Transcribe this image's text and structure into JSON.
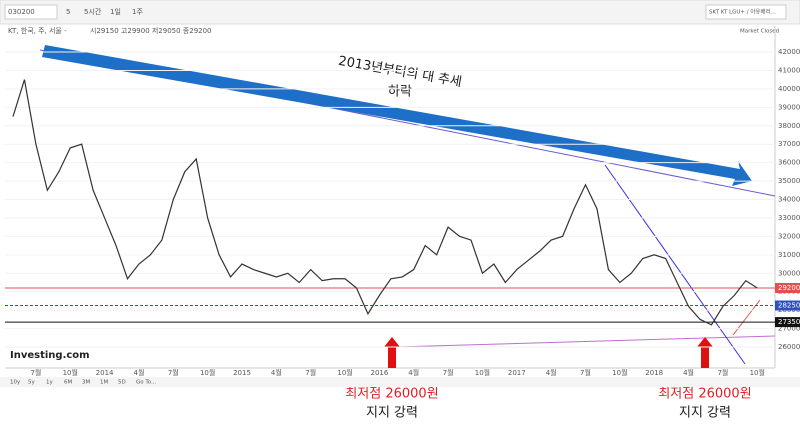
{
  "toolbar": {
    "symbol": "030200",
    "intervals": [
      "5",
      "5시간",
      "1일",
      "1주"
    ],
    "compare": "SKT KT LGU+ / 아유배리..."
  },
  "footer": {
    "brand": "Investing.com",
    "ranges": [
      "10y",
      "5y",
      "1y",
      "6M",
      "3M",
      "1M",
      "5D",
      "Go To..."
    ]
  },
  "chart_data": {
    "type": "line",
    "legend_title": "KT, 한국, 주, 서울 -",
    "ohlc_text": "시29150  고29900  저29050  종29200",
    "status": "Market Closed",
    "annotations": {
      "trend": "2013년부터의 대 추세",
      "trend2": "하락",
      "low1": "최저점 26000원",
      "support1": "지지 강력",
      "low2": "최저점 26000원",
      "support2": "지지 강력"
    },
    "categories": [
      null,
      null,
      "7월",
      null,
      null,
      "10월",
      null,
      null,
      "2014",
      null,
      null,
      "4월",
      null,
      null,
      "7월",
      null,
      null,
      "10월",
      null,
      null,
      "2015",
      null,
      null,
      "4월",
      null,
      null,
      "7월",
      null,
      null,
      "10월",
      null,
      null,
      "2016",
      null,
      null,
      "4월",
      null,
      null,
      "7월",
      null,
      null,
      "10월",
      null,
      null,
      "2017",
      null,
      null,
      "4월",
      null,
      null,
      "7월",
      null,
      null,
      "10월",
      null,
      null,
      "2018",
      null,
      null,
      "4월",
      null,
      null,
      "7월",
      null,
      null,
      "10월"
    ],
    "values": [
      38500,
      40500,
      37000,
      34500,
      35500,
      36800,
      37000,
      34500,
      33000,
      31500,
      29700,
      30500,
      31000,
      31800,
      34000,
      35500,
      36200,
      33000,
      31000,
      29800,
      30500,
      30200,
      30000,
      29800,
      30000,
      29500,
      30200,
      29600,
      29700,
      29700,
      29200,
      27800,
      28800,
      29700,
      29800,
      30200,
      31500,
      31000,
      32500,
      32000,
      31800,
      30000,
      30500,
      29500,
      30200,
      30700,
      31200,
      31800,
      32000,
      33500,
      34800,
      33500,
      30200,
      29500,
      30000,
      30800,
      31000,
      30800,
      29500,
      28200,
      27500,
      27200,
      28200,
      28800,
      29600,
      29200
    ],
    "color": "#333333",
    "ylim": [
      25500,
      42500
    ],
    "yticks": [
      26000,
      27000,
      28000,
      29000,
      30000,
      31000,
      32000,
      33000,
      34000,
      35000,
      36000,
      37000,
      38000,
      39000,
      40000,
      41000,
      42000
    ],
    "grid": true,
    "price_lines": [
      {
        "value": 29200,
        "color": "#e05050"
      },
      {
        "value": 28250,
        "color": "#3050c0"
      },
      {
        "value": 27350,
        "color": "#111111"
      }
    ]
  }
}
